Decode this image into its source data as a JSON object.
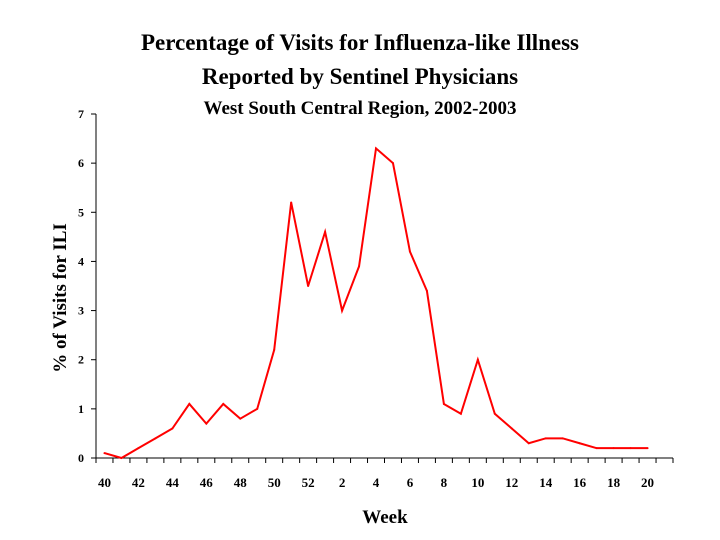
{
  "chart_data": {
    "type": "line",
    "title": "Percentage of Visits for Influenza-like Illness",
    "subtitle": "Reported by Sentinel Physicians",
    "subtitle2": "West South Central Region, 2002-2003",
    "xlabel": "Week",
    "ylabel": "% of Visits for ILI",
    "ylim": [
      0,
      7
    ],
    "yticks": [
      "0",
      "1",
      "2",
      "3",
      "4",
      "5",
      "6",
      "7"
    ],
    "x": [
      40,
      41,
      42,
      43,
      44,
      45,
      46,
      47,
      48,
      49,
      50,
      51,
      52,
      1,
      2,
      3,
      4,
      5,
      6,
      7,
      8,
      9,
      10,
      11,
      12,
      13,
      14,
      15,
      16,
      17,
      18,
      19,
      20
    ],
    "xtick_labels": [
      "40",
      "42",
      "44",
      "46",
      "48",
      "50",
      "52",
      "2",
      "4",
      "6",
      "8",
      "10",
      "12",
      "14",
      "16",
      "18",
      "20"
    ],
    "series": [
      {
        "name": "ILI %",
        "color": "#ff0000",
        "values": [
          0.1,
          0.0,
          0.2,
          0.4,
          0.6,
          1.1,
          0.7,
          1.1,
          0.8,
          1.0,
          2.2,
          5.2,
          3.5,
          4.6,
          3.0,
          3.9,
          6.3,
          6.0,
          4.2,
          3.4,
          1.1,
          0.9,
          2.0,
          0.9,
          0.6,
          0.3,
          0.4,
          0.4,
          0.3,
          0.2,
          0.2,
          0.2,
          0.2
        ]
      }
    ],
    "grid": false,
    "legend": "none"
  }
}
